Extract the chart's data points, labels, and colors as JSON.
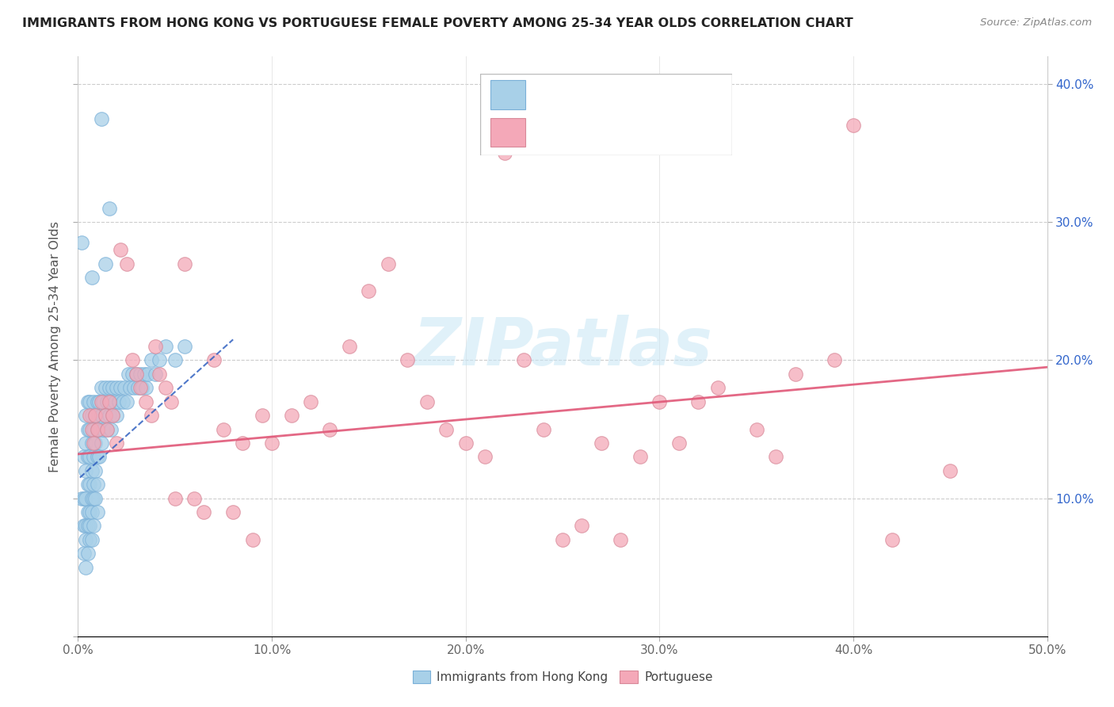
{
  "title": "IMMIGRANTS FROM HONG KONG VS PORTUGUESE FEMALE POVERTY AMONG 25-34 YEAR OLDS CORRELATION CHART",
  "source": "Source: ZipAtlas.com",
  "ylabel": "Female Poverty Among 25-34 Year Olds",
  "xlim": [
    0.0,
    0.5
  ],
  "ylim": [
    0.0,
    0.42
  ],
  "x_ticks": [
    0.0,
    0.1,
    0.2,
    0.3,
    0.4,
    0.5
  ],
  "x_tick_labels": [
    "0.0%",
    "10.0%",
    "20.0%",
    "30.0%",
    "40.0%",
    "50.0%"
  ],
  "y_ticks": [
    0.1,
    0.2,
    0.3,
    0.4
  ],
  "y_tick_labels": [
    "10.0%",
    "20.0%",
    "30.0%",
    "40.0%"
  ],
  "color_hk": "#A8D0E8",
  "color_pt": "#F4A8B8",
  "color_hk_line": "#3060C0",
  "color_pt_line": "#E05878",
  "watermark": "ZIPatlas",
  "watermark_color": "#D0E8F5",
  "bottom_label1": "Immigrants from Hong Kong",
  "bottom_label2": "Portuguese",
  "hk_x": [
    0.002,
    0.003,
    0.003,
    0.003,
    0.003,
    0.004,
    0.004,
    0.004,
    0.004,
    0.004,
    0.004,
    0.004,
    0.005,
    0.005,
    0.005,
    0.005,
    0.005,
    0.005,
    0.005,
    0.006,
    0.006,
    0.006,
    0.006,
    0.006,
    0.006,
    0.006,
    0.007,
    0.007,
    0.007,
    0.007,
    0.007,
    0.007,
    0.008,
    0.008,
    0.008,
    0.008,
    0.008,
    0.008,
    0.009,
    0.009,
    0.009,
    0.009,
    0.01,
    0.01,
    0.01,
    0.01,
    0.01,
    0.011,
    0.011,
    0.011,
    0.012,
    0.012,
    0.012,
    0.013,
    0.013,
    0.014,
    0.014,
    0.015,
    0.015,
    0.016,
    0.016,
    0.017,
    0.017,
    0.018,
    0.018,
    0.019,
    0.02,
    0.02,
    0.021,
    0.022,
    0.023,
    0.024,
    0.025,
    0.026,
    0.027,
    0.028,
    0.029,
    0.03,
    0.031,
    0.032,
    0.033,
    0.034,
    0.035,
    0.036,
    0.038,
    0.04,
    0.042,
    0.045,
    0.05,
    0.055,
    0.012,
    0.016,
    0.002,
    0.014,
    0.007
  ],
  "hk_y": [
    0.1,
    0.13,
    0.1,
    0.08,
    0.06,
    0.16,
    0.14,
    0.12,
    0.1,
    0.08,
    0.07,
    0.05,
    0.17,
    0.15,
    0.13,
    0.11,
    0.09,
    0.08,
    0.06,
    0.17,
    0.15,
    0.13,
    0.11,
    0.09,
    0.08,
    0.07,
    0.16,
    0.14,
    0.12,
    0.1,
    0.09,
    0.07,
    0.17,
    0.15,
    0.13,
    0.11,
    0.1,
    0.08,
    0.16,
    0.14,
    0.12,
    0.1,
    0.17,
    0.15,
    0.13,
    0.11,
    0.09,
    0.17,
    0.15,
    0.13,
    0.18,
    0.16,
    0.14,
    0.17,
    0.15,
    0.18,
    0.16,
    0.17,
    0.15,
    0.18,
    0.16,
    0.17,
    0.15,
    0.18,
    0.16,
    0.17,
    0.18,
    0.16,
    0.17,
    0.18,
    0.17,
    0.18,
    0.17,
    0.19,
    0.18,
    0.19,
    0.18,
    0.19,
    0.18,
    0.19,
    0.18,
    0.19,
    0.18,
    0.19,
    0.2,
    0.19,
    0.2,
    0.21,
    0.2,
    0.21,
    0.375,
    0.31,
    0.285,
    0.27,
    0.26
  ],
  "pt_x": [
    0.006,
    0.007,
    0.008,
    0.009,
    0.01,
    0.012,
    0.014,
    0.015,
    0.016,
    0.018,
    0.02,
    0.022,
    0.025,
    0.028,
    0.03,
    0.032,
    0.035,
    0.038,
    0.04,
    0.042,
    0.045,
    0.048,
    0.05,
    0.055,
    0.06,
    0.065,
    0.07,
    0.075,
    0.08,
    0.085,
    0.09,
    0.095,
    0.1,
    0.11,
    0.12,
    0.13,
    0.14,
    0.15,
    0.16,
    0.17,
    0.18,
    0.19,
    0.2,
    0.21,
    0.22,
    0.23,
    0.24,
    0.25,
    0.26,
    0.27,
    0.28,
    0.29,
    0.3,
    0.31,
    0.32,
    0.33,
    0.35,
    0.36,
    0.37,
    0.39,
    0.4,
    0.42,
    0.45
  ],
  "pt_y": [
    0.16,
    0.15,
    0.14,
    0.16,
    0.15,
    0.17,
    0.16,
    0.15,
    0.17,
    0.16,
    0.14,
    0.28,
    0.27,
    0.2,
    0.19,
    0.18,
    0.17,
    0.16,
    0.21,
    0.19,
    0.18,
    0.17,
    0.1,
    0.27,
    0.1,
    0.09,
    0.2,
    0.15,
    0.09,
    0.14,
    0.07,
    0.16,
    0.14,
    0.16,
    0.17,
    0.15,
    0.21,
    0.25,
    0.27,
    0.2,
    0.17,
    0.15,
    0.14,
    0.13,
    0.35,
    0.2,
    0.15,
    0.07,
    0.08,
    0.14,
    0.07,
    0.13,
    0.17,
    0.14,
    0.17,
    0.18,
    0.15,
    0.13,
    0.19,
    0.2,
    0.37,
    0.07,
    0.12
  ],
  "hk_line_x": [
    0.001,
    0.08
  ],
  "hk_line_y": [
    0.115,
    0.215
  ],
  "pt_line_x": [
    0.0,
    0.5
  ],
  "pt_line_y": [
    0.132,
    0.195
  ]
}
